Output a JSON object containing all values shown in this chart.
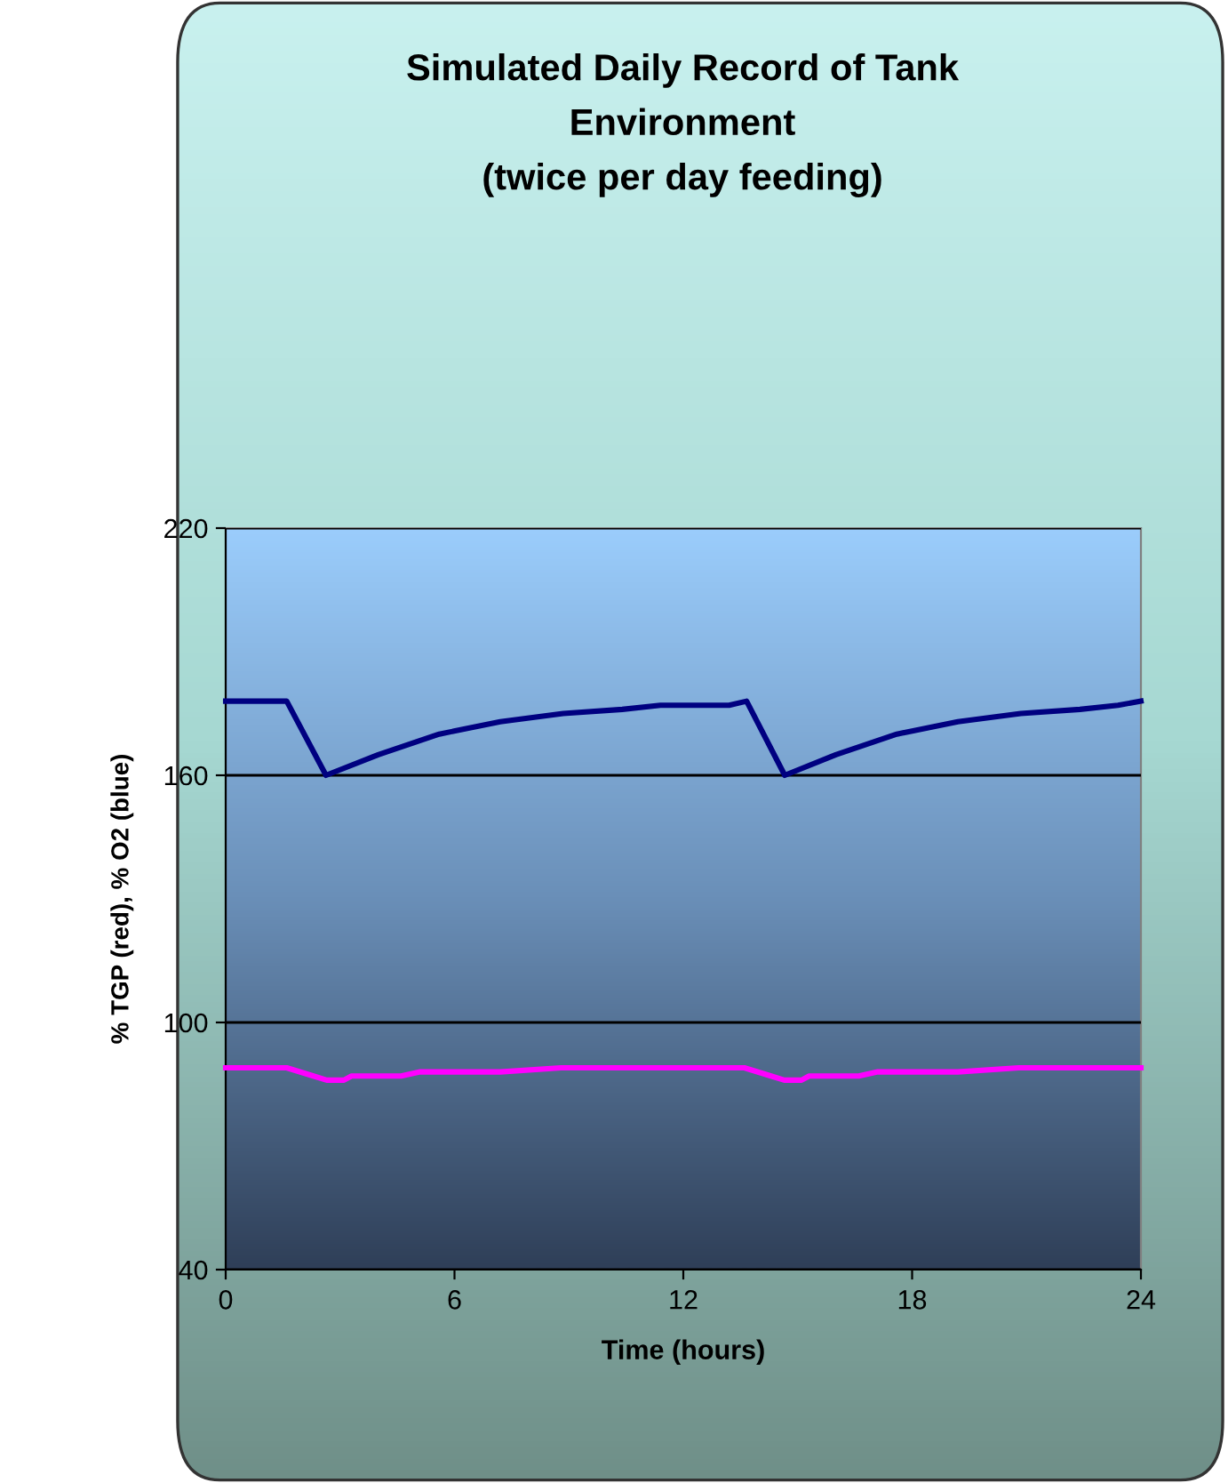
{
  "chart_data": {
    "type": "line",
    "title": "Simulated Daily Record of Tank\nEnvironment\n(twice per day feeding)",
    "xlabel": "Time (hours)",
    "ylabel": "% TGP (red), % O2 (blue)",
    "series": [
      {
        "color": "#000080",
        "x": [
          0,
          1.2,
          1.6,
          2.63,
          4.0,
          5.6,
          7.2,
          8.85,
          10.4,
          11.4,
          13.2,
          13.66,
          14.66,
          16.0,
          17.6,
          19.2,
          20.85,
          22.4,
          23.4,
          24
        ],
        "values": [
          178,
          178,
          178,
          160,
          165,
          170,
          173,
          175,
          176,
          177,
          177,
          178,
          160,
          165,
          170,
          173,
          175,
          176,
          177,
          178
        ]
      },
      {
        "color": "#ff00ff",
        "x": [
          0,
          1.6,
          2.3,
          2.65,
          3.1,
          3.3,
          4.6,
          5.1,
          7.2,
          8.8,
          13.6,
          14.3,
          14.65,
          15.1,
          15.3,
          16.6,
          17.1,
          19.2,
          20.8,
          24
        ],
        "values": [
          89,
          89,
          87,
          86,
          86,
          87,
          87,
          88,
          88,
          89,
          89,
          87,
          86,
          86,
          87,
          87,
          88,
          88,
          89,
          89
        ]
      }
    ],
    "xlim": [
      0,
      24
    ],
    "xticks": [
      0,
      6,
      12,
      18,
      24
    ],
    "ylim": [
      40,
      220
    ],
    "yticks": [
      40,
      100,
      160,
      220
    ],
    "grid": "y",
    "marker": "none",
    "line_style": "solid"
  }
}
